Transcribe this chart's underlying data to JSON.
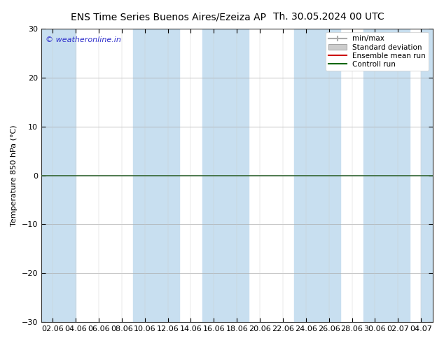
{
  "title_left": "ENS Time Series Buenos Aires/Ezeiza AP",
  "title_right": "Th. 30.05.2024 00 UTC",
  "ylabel": "Temperature 850 hPa (°C)",
  "watermark": "© weatheronline.in",
  "ylim": [
    -30,
    30
  ],
  "yticks": [
    -30,
    -20,
    -10,
    0,
    10,
    20,
    30
  ],
  "x_labels": [
    "02.06",
    "04.06",
    "06.06",
    "08.06",
    "10.06",
    "12.06",
    "14.06",
    "16.06",
    "18.06",
    "20.06",
    "22.06",
    "24.06",
    "26.06",
    "28.06",
    "30.06",
    "02.07",
    "04.07"
  ],
  "stripe_color": "#c8dff0",
  "bg_color": "#ffffff",
  "plot_bg_color": "#ffffff",
  "legend_entries": [
    "min/max",
    "Standard deviation",
    "Ensemble mean run",
    "Controll run"
  ],
  "legend_line_color": "#aaaaaa",
  "legend_std_color": "#cccccc",
  "legend_ens_color": "#cc0000",
  "legend_ctrl_color": "#006600",
  "zero_line_color": "#336633",
  "title_fontsize": 10,
  "watermark_color": "#3333cc"
}
